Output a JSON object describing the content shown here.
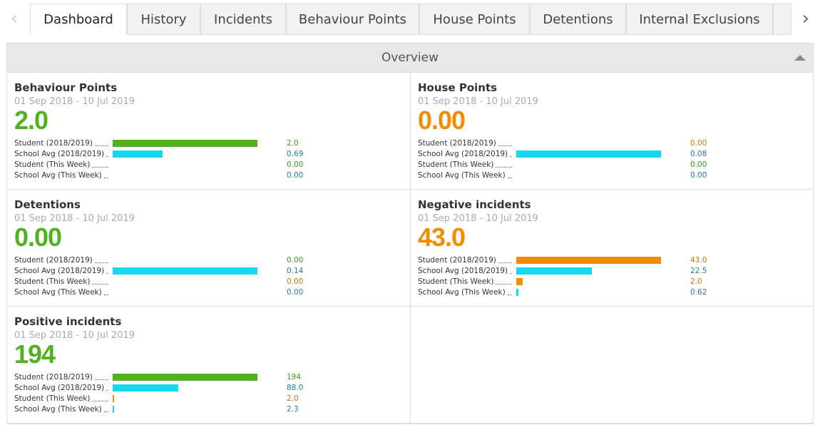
{
  "tabs": [
    "Dashboard",
    "History",
    "Incidents",
    "Behaviour Points",
    "House Points",
    "Detentions",
    "Internal Exclusions"
  ],
  "active_tab": 0,
  "overview": {
    "title": "Overview",
    "panels": [
      {
        "title": "Behaviour Points",
        "date": "01 Sep 2018 - 10 Jul 2019",
        "big": "2.0",
        "big_color": "#52b120",
        "rows": [
          {
            "label": "Student (2018/2019)",
            "value": 2,
            "value_label": "2.0",
            "color": "#52b120",
            "text_color": "#3f9a12"
          },
          {
            "label": "School Avg (2018/2019)",
            "value": 0.69,
            "color": "#14d9f0",
            "text_color": "#1f7f96"
          },
          {
            "label": "Student (This Week)",
            "value": 0,
            "value_label": "0.00",
            "color": "#52b120",
            "text_color": "#3f9a12"
          },
          {
            "label": "School Avg (This Week)",
            "value": 0,
            "value_label": "0.00",
            "color": "#14d9f0",
            "text_color": "#1f7f96"
          }
        ]
      },
      {
        "title": "House Points",
        "date": "01 Sep 2018 - 10 Jul 2019",
        "big": "0.00",
        "big_color": "#f28c00",
        "rows": [
          {
            "label": "Student (2018/2019)",
            "value": 0,
            "value_label": "0.00",
            "color": "#f28c00",
            "text_color": "#d07400"
          },
          {
            "label": "School Avg (2018/2019)",
            "value": 0.08,
            "color": "#14d9f0",
            "text_color": "#1f7f96"
          },
          {
            "label": "Student (This Week)",
            "value": 0,
            "value_label": "0.00",
            "color": "#52b120",
            "text_color": "#3f9a12"
          },
          {
            "label": "School Avg (This Week)",
            "value": 0,
            "value_label": "0.00",
            "color": "#14d9f0",
            "text_color": "#1f7f96"
          }
        ]
      },
      {
        "title": "Detentions",
        "date": "01 Sep 2018 - 10 Jul 2019",
        "big": "0.00",
        "big_color": "#52b120",
        "rows": [
          {
            "label": "Student (2018/2019)",
            "value": 0,
            "value_label": "0.00",
            "color": "#52b120",
            "text_color": "#3f9a12"
          },
          {
            "label": "School Avg (2018/2019)",
            "value": 0.14,
            "color": "#14d9f0",
            "text_color": "#1f7f96"
          },
          {
            "label": "Student (This Week)",
            "value": 0,
            "value_label": "0.00",
            "color": "#f28c00",
            "text_color": "#d07400"
          },
          {
            "label": "School Avg (This Week)",
            "value": 0,
            "value_label": "0.00",
            "color": "#14d9f0",
            "text_color": "#1f7f96"
          }
        ]
      },
      {
        "title": "Negative incidents",
        "date": "01 Sep 2018 - 10 Jul 2019",
        "big": "43.0",
        "big_color": "#f28c00",
        "rows": [
          {
            "label": "Student (2018/2019)",
            "value": 43,
            "value_label": "43.0",
            "color": "#f28c00",
            "text_color": "#d07400"
          },
          {
            "label": "School Avg (2018/2019)",
            "value": 22.5,
            "color": "#14d9f0",
            "text_color": "#1f7f96"
          },
          {
            "label": "Student (This Week)",
            "value": 2,
            "value_label": "2.0",
            "color": "#f28c00",
            "text_color": "#d07400"
          },
          {
            "label": "School Avg (This Week)",
            "value": 0.62,
            "color": "#14d9f0",
            "text_color": "#1f7f96"
          }
        ]
      },
      {
        "title": "Positive incidents",
        "date": "01 Sep 2018 - 10 Jul 2019",
        "big": "194",
        "big_color": "#52b120",
        "rows": [
          {
            "label": "Student (2018/2019)",
            "value": 194,
            "color": "#52b120",
            "text_color": "#3f9a12"
          },
          {
            "label": "School Avg (2018/2019)",
            "value": 88,
            "value_label": "88.0",
            "color": "#14d9f0",
            "text_color": "#1f7f96"
          },
          {
            "label": "Student (This Week)",
            "value": 2,
            "value_label": "2.0",
            "color": "#f28c00",
            "text_color": "#d07400"
          },
          {
            "label": "School Avg (This Week)",
            "value": 2.3,
            "color": "#14d9f0",
            "text_color": "#1f7f96"
          }
        ]
      }
    ]
  }
}
